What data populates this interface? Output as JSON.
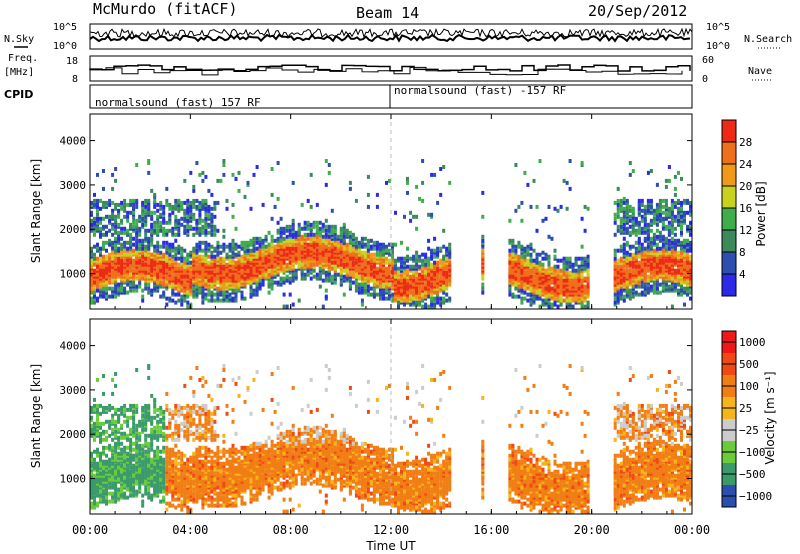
{
  "header": {
    "station": "McMurdo (fitACF)",
    "beam": "Beam 14",
    "date": "20/Sep/2012"
  },
  "top_panels": {
    "nsky_label": "N.Sky",
    "nsearch_label": "N.Search",
    "freq_label_1": "Freq.",
    "freq_label_2": "[MHz]",
    "nave_label": "Nave",
    "cpid_label": "CPID",
    "noise_left_ticks": [
      "10^5",
      "10^0"
    ],
    "noise_right_ticks": [
      "10^5",
      "10^0"
    ],
    "freq_ticks": [
      "18",
      "8"
    ],
    "nave_ticks": [
      "60",
      "0"
    ],
    "cpid_segments": [
      {
        "label": "normalsound (fast) 157 RF",
        "start_hour": 0
      },
      {
        "label": "normalsound (fast) -157 RF",
        "start_hour": 12
      }
    ]
  },
  "colors": {
    "power_scale": [
      "#2a2ae8",
      "#2c4fb0",
      "#3a8a5a",
      "#3fae4a",
      "#c8d21e",
      "#f09a18",
      "#f0701a",
      "#ee2a16"
    ],
    "velocity_scale": [
      "#ee1818",
      "#f04a14",
      "#f07e14",
      "#f4b41a",
      "#cccccc",
      "#6acc3a",
      "#3a9a6a",
      "#2a4fb0"
    ]
  },
  "chart_data": [
    {
      "type": "heatmap",
      "name": "power",
      "ylabel": "Slant Range [km]",
      "yticks": [
        "1000",
        "2000",
        "3000",
        "4000"
      ],
      "ylim": [
        200,
        4600
      ],
      "xlim_hours": [
        0,
        24
      ],
      "colorbar_label": "Power [dB]",
      "colorbar_ticks": [
        "4",
        "8",
        "12",
        "16",
        "20",
        "24",
        "28"
      ],
      "colorbar_range": [
        0,
        32
      ]
    },
    {
      "type": "heatmap",
      "name": "velocity",
      "ylabel": "Slant Range [km]",
      "yticks": [
        "1000",
        "2000",
        "3000",
        "4000"
      ],
      "ylim": [
        200,
        4600
      ],
      "xlim_hours": [
        0,
        24
      ],
      "colorbar_label": "Velocity [m s⁻¹]",
      "colorbar_ticks": [
        "1000",
        "500",
        "100",
        "25",
        "−25",
        "−100",
        "−500",
        "−1000"
      ]
    }
  ],
  "xaxis": {
    "label": "Time UT",
    "ticks": [
      "00:00",
      "04:00",
      "08:00",
      "12:00",
      "16:00",
      "20:00",
      "00:00"
    ],
    "tick_hours": [
      0,
      4,
      8,
      12,
      16,
      20,
      24
    ]
  }
}
